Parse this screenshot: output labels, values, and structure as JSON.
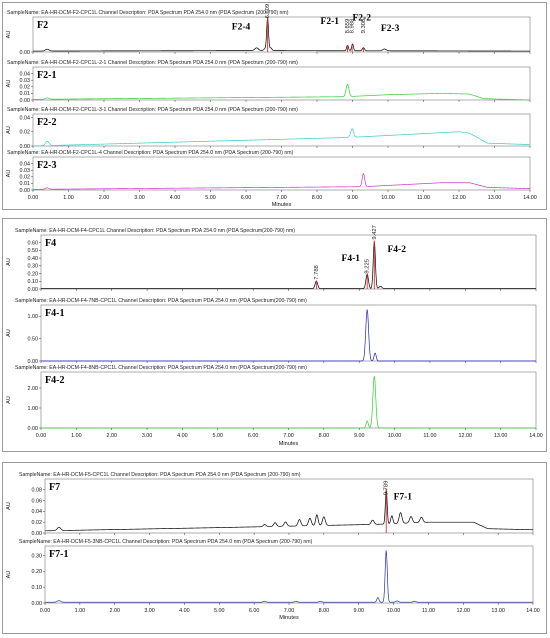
{
  "chart_data": [
    {
      "type": "line",
      "group": "F2",
      "x_unit": "Minutes",
      "xlim": [
        0,
        14
      ],
      "x_ticks": [
        "0.00",
        "1.00",
        "2.00",
        "3.00",
        "4.00",
        "5.00",
        "6.00",
        "7.00",
        "8.00",
        "9.00",
        "10.00",
        "11.00",
        "12.00",
        "13.00",
        "14.00"
      ],
      "traces": [
        {
          "sample": "SampleName: EA-HR-DCM-F2-CPC1L Channel Description: PDA Spectrum PDA 254.0 nm (PDA Spectrum (200-790) nm)",
          "label": "F2",
          "color": "#000000",
          "ylabel": "AU",
          "ylim": [
            0,
            0.075
          ],
          "y_ticks": [
            "0.00",
            "0.20",
            "0.40",
            "0.60"
          ],
          "baseline": [
            [
              0,
              0.002
            ],
            [
              6.0,
              0.003
            ],
            [
              14,
              0.002
            ]
          ],
          "peaks": [
            [
              0.4,
              0.004,
              0.05
            ],
            [
              6.3,
              0.006,
              0.05
            ],
            [
              6.55,
              0.005,
              0.04
            ],
            [
              6.609,
              0.07,
              0.025
            ],
            [
              6.7,
              0.006,
              0.03
            ],
            [
              8.86,
              0.012,
              0.025
            ],
            [
              9.0,
              0.015,
              0.025
            ],
            [
              9.308,
              0.007,
              0.03
            ],
            [
              9.9,
              0.004,
              0.05
            ]
          ],
          "annotations": [
            {
              "text": "F2-4",
              "kind": "label",
              "x": 5.6,
              "y": 0.048
            },
            {
              "text": "F2-1",
              "kind": "label",
              "x": 8.1,
              "y": 0.06
            },
            {
              "text": "F2-2",
              "kind": "label",
              "x": 9.0,
              "y": 0.068
            },
            {
              "text": "F2-3",
              "kind": "label",
              "x": 9.8,
              "y": 0.045
            },
            {
              "text": "6.609",
              "kind": "rt",
              "x": 6.609,
              "y": 0.072
            },
            {
              "text": "8.859",
              "kind": "rt",
              "x": 8.859,
              "y": 0.04
            },
            {
              "text": "8.988",
              "kind": "rt",
              "x": 8.988,
              "y": 0.04
            },
            {
              "text": "9.308",
              "kind": "rt",
              "x": 9.308,
              "y": 0.04
            }
          ]
        },
        {
          "sample": "SampleName: EA-HR-DCM-F2-CPC1L-2-1 Channel Description: PDA Spectrum PDA 254.0 nm (PDA Spectrum (200-790) nm)",
          "label": "F2-1",
          "color": "#33cc33",
          "ylabel": "AU",
          "ylim": [
            0,
            0.05
          ],
          "y_ticks": [
            "0.00",
            "0.01",
            "0.02",
            "0.03",
            "0.04"
          ],
          "baseline": [
            [
              0,
              0.001
            ],
            [
              8.8,
              0.005
            ],
            [
              10,
              0.008
            ],
            [
              11.5,
              0.01
            ],
            [
              12.3,
              0.009
            ],
            [
              12.7,
              0.002
            ],
            [
              14,
              0.0
            ]
          ],
          "peaks": [
            [
              0.4,
              0.002,
              0.05
            ],
            [
              8.859,
              0.019,
              0.04
            ]
          ],
          "annotations": []
        },
        {
          "sample": "SampleName: EA-HR-DCM-F2-CPC1L-3-1 Channel Description: PDA Spectrum PDA 254.0 nm (PDA Spectrum (200-790) nm)",
          "label": "F2-2",
          "color": "#33cccc",
          "ylabel": "AU",
          "ylim": [
            0,
            0.045
          ],
          "y_ticks": [
            "0.00",
            "0.02",
            "0.04"
          ],
          "baseline": [
            [
              0,
              0.0
            ],
            [
              8.9,
              0.012
            ],
            [
              12.0,
              0.02
            ],
            [
              12.3,
              0.018
            ],
            [
              12.8,
              0.004
            ],
            [
              14,
              0.002
            ]
          ],
          "peaks": [
            [
              0.4,
              0.006,
              0.05
            ],
            [
              8.988,
              0.012,
              0.04
            ]
          ],
          "annotations": []
        },
        {
          "sample": "SampleName: EA-HR-DCM-F2-CPC1L-4 Channel Description: PDA Spectrum PDA 254.0 nm (PDA Spectrum (200-790) nm)",
          "label": "F2-3",
          "color": "#cc33cc",
          "ylabel": "AU",
          "ylim": [
            0,
            0.05
          ],
          "y_ticks": [
            "0.00",
            "0.01",
            "0.02",
            "0.03",
            "0.04"
          ],
          "baseline": [
            [
              0,
              0.001
            ],
            [
              9.3,
              0.005
            ],
            [
              11.5,
              0.011
            ],
            [
              12.3,
              0.011
            ],
            [
              12.8,
              0.004
            ],
            [
              14,
              0.002
            ]
          ],
          "peaks": [
            [
              0.4,
              0.002,
              0.05
            ],
            [
              9.308,
              0.02,
              0.035
            ]
          ],
          "annotations": []
        }
      ]
    },
    {
      "type": "line",
      "group": "F4",
      "x_unit": "Minutes",
      "xlim": [
        0,
        14
      ],
      "x_ticks": [
        "0.00",
        "1.00",
        "2.00",
        "3.00",
        "4.00",
        "5.00",
        "6.00",
        "7.00",
        "8.00",
        "9.00",
        "10.00",
        "11.00",
        "12.00",
        "13.00",
        "14.00"
      ],
      "traces": [
        {
          "sample": "SampleName: EA-HR-DCM-F4-CPC1L Channel Description: PDA Spectrum PDA 254.0 nm (PDA Spectrum(200-790) nm)",
          "label": "F4",
          "color": "#000000",
          "ylabel": "AU",
          "ylim": [
            0,
            0.7
          ],
          "y_ticks": [
            "0.00",
            "0.10",
            "0.20",
            "0.30",
            "0.40",
            "0.50",
            "0.60"
          ],
          "baseline": [
            [
              0,
              0.005
            ],
            [
              14,
              0.005
            ]
          ],
          "peaks": [
            [
              7.788,
              0.1,
              0.035
            ],
            [
              9.225,
              0.19,
              0.035
            ],
            [
              9.427,
              0.62,
              0.03
            ],
            [
              9.6,
              0.03,
              0.04
            ]
          ],
          "annotations": [
            {
              "text": "F4-1",
              "kind": "label",
              "x": 8.5,
              "y": 0.36
            },
            {
              "text": "F4-2",
              "kind": "label",
              "x": 9.8,
              "y": 0.48
            },
            {
              "text": "7.788",
              "kind": "rt",
              "x": 7.788,
              "y": 0.12
            },
            {
              "text": "9.225",
              "kind": "rt",
              "x": 9.225,
              "y": 0.2
            },
            {
              "text": "9.427",
              "kind": "rt",
              "x": 9.427,
              "y": 0.64
            }
          ]
        },
        {
          "sample": "SampleName: EA-HR-DCM-F4-7NB-CPC1L Channel Description: PDA Spectrum PDA 254.0 nm (PDA Spectrum(200-790) nm)",
          "label": "F4-1",
          "color": "#2222cc",
          "ylabel": "AU",
          "ylim": [
            0,
            1.25
          ],
          "y_ticks": [
            "0.00",
            "0.50",
            "1.00"
          ],
          "baseline": [
            [
              0,
              0.0
            ],
            [
              14,
              0.0
            ]
          ],
          "peaks": [
            [
              9.225,
              1.15,
              0.04
            ],
            [
              9.45,
              0.18,
              0.03
            ]
          ],
          "annotations": []
        },
        {
          "sample": "SampleName: EA-HR-DCM-F4-8NB-CPC1L Channel Description: PDA Spectrum PDA 254.0 nm (PDA Spectrum(200-790) nm)",
          "label": "F4-2",
          "color": "#33cc33",
          "ylabel": "AU",
          "ylim": [
            0,
            2.8
          ],
          "y_ticks": [
            "0.00",
            "1.00",
            "2.00"
          ],
          "baseline": [
            [
              0,
              0.0
            ],
            [
              14,
              0.0
            ]
          ],
          "peaks": [
            [
              9.225,
              0.35,
              0.03
            ],
            [
              9.427,
              2.6,
              0.04
            ]
          ],
          "annotations": []
        }
      ]
    },
    {
      "type": "line",
      "group": "F7",
      "x_unit": "Minutes",
      "xlim": [
        0,
        14
      ],
      "x_ticks": [
        "0.00",
        "1.00",
        "2.00",
        "3.00",
        "4.00",
        "5.00",
        "6.00",
        "7.00",
        "8.00",
        "9.00",
        "10.00",
        "11.00",
        "12.00",
        "13.00",
        "14.00"
      ],
      "traces": [
        {
          "sample": "SampleName: EA-HR-DCM-F5-CPC1L Channel Description: PDA Spectrum PDA 254.0 nm (PDA Spectrum (200-790) nm)",
          "label": "F7",
          "color": "#000000",
          "ylabel": "AU",
          "ylim": [
            0,
            0.1
          ],
          "y_ticks": [
            "0.00",
            "0.02",
            "0.04",
            "0.06",
            "0.08"
          ],
          "baseline": [
            [
              0,
              0.004
            ],
            [
              5.0,
              0.01
            ],
            [
              9.5,
              0.016
            ],
            [
              11.0,
              0.02
            ],
            [
              12.3,
              0.02
            ],
            [
              12.7,
              0.008
            ],
            [
              14,
              0.006
            ]
          ],
          "peaks": [
            [
              0.4,
              0.006,
              0.05
            ],
            [
              6.3,
              0.004,
              0.04
            ],
            [
              6.6,
              0.007,
              0.04
            ],
            [
              6.9,
              0.008,
              0.04
            ],
            [
              7.3,
              0.012,
              0.04
            ],
            [
              7.6,
              0.014,
              0.04
            ],
            [
              7.8,
              0.02,
              0.035
            ],
            [
              8.0,
              0.016,
              0.04
            ],
            [
              9.4,
              0.008,
              0.04
            ],
            [
              9.79,
              0.065,
              0.025
            ],
            [
              9.95,
              0.015,
              0.03
            ],
            [
              10.2,
              0.02,
              0.04
            ],
            [
              10.5,
              0.012,
              0.04
            ],
            [
              10.8,
              0.01,
              0.04
            ]
          ],
          "annotations": [
            {
              "text": "F7-1",
              "kind": "label",
              "x": 10.0,
              "y": 0.062
            },
            {
              "text": "9.789",
              "kind": "rt",
              "x": 9.789,
              "y": 0.07
            }
          ]
        },
        {
          "sample": "SampleName: EA-HR-DCM-F5-3NB-CPC1L Channel Description: PDA Spectrum PDA 254.0 nm (PDA Spectrum (200-790) nm)",
          "label": "F7-1",
          "color": "#2233bb",
          "ylabel": "AU",
          "ylim": [
            0,
            0.36
          ],
          "y_ticks": [
            "0.00",
            "0.10",
            "0.20",
            "0.30"
          ],
          "baseline": [
            [
              0,
              0.005
            ],
            [
              14,
              0.005
            ]
          ],
          "peaks": [
            [
              0.4,
              0.01,
              0.05
            ],
            [
              6.3,
              0.006,
              0.04
            ],
            [
              7.2,
              0.006,
              0.04
            ],
            [
              7.9,
              0.006,
              0.04
            ],
            [
              9.55,
              0.03,
              0.03
            ],
            [
              9.789,
              0.33,
              0.03
            ],
            [
              10.1,
              0.008,
              0.04
            ],
            [
              10.6,
              0.006,
              0.04
            ]
          ],
          "annotations": []
        }
      ]
    }
  ]
}
